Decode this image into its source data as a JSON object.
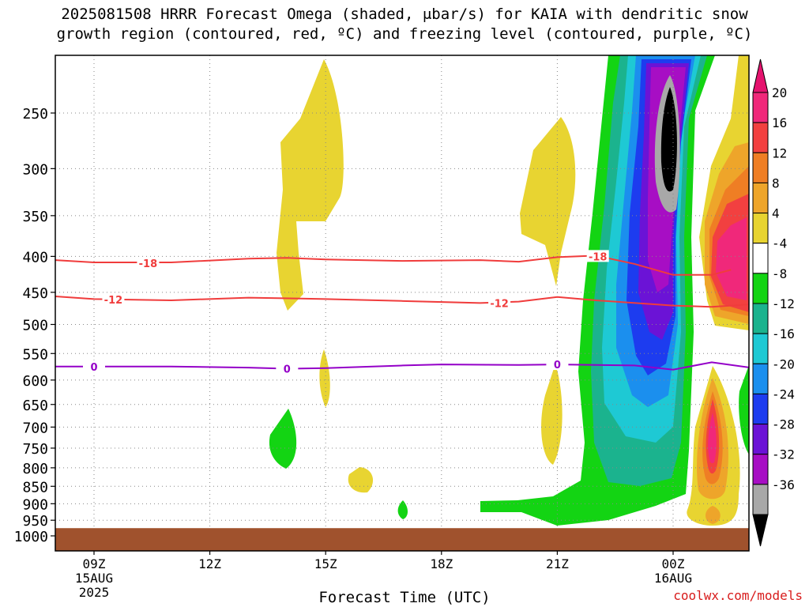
{
  "title": {
    "line1": "2025081508 HRRR Forecast Omega (shaded, μbar/s) for KAIA with dendritic snow",
    "line2": "growth region (contoured, red, ºC) and freezing level (contoured, purple, ºC)"
  },
  "credit": "coolwx.com/models",
  "chart_data": {
    "type": "heatmap",
    "title": "2025081508 HRRR Forecast Omega (shaded, μbar/s) for KAIA with dendritic snow growth region (contoured, red, ºC) and freezing level (contoured, purple, ºC)",
    "xlabel": "Forecast Time (UTC)",
    "ylabel": "",
    "x_hours": [
      8,
      26
    ],
    "x_ticks": [
      {
        "hour": 9,
        "label": "09Z",
        "sub1": "15AUG",
        "sub2": "2025"
      },
      {
        "hour": 12,
        "label": "12Z",
        "sub1": "",
        "sub2": ""
      },
      {
        "hour": 15,
        "label": "15Z",
        "sub1": "",
        "sub2": ""
      },
      {
        "hour": 18,
        "label": "18Z",
        "sub1": "",
        "sub2": ""
      },
      {
        "hour": 21,
        "label": "21Z",
        "sub1": "",
        "sub2": ""
      },
      {
        "hour": 24,
        "label": "00Z",
        "sub1": "16AUG",
        "sub2": ""
      }
    ],
    "y_pressure_hpa": [
      1000,
      950,
      900,
      850,
      800,
      750,
      700,
      650,
      600,
      550,
      500,
      450,
      400,
      350,
      300,
      250
    ],
    "y_scale": "log (pressure)",
    "grid": true,
    "colorbar": {
      "labels": [
        "20",
        "16",
        "12",
        "8",
        "4",
        "-4",
        "-8",
        "-12",
        "-16",
        "-20",
        "-24",
        "-28",
        "-32",
        "-36"
      ],
      "colors": [
        "#f0287a",
        "#f24040",
        "#ef7e24",
        "#eea52a",
        "#e8d431",
        "#ffffff",
        "#13d413",
        "#1bb38e",
        "#1ec9d4",
        "#1b8fee",
        "#1d3cef",
        "#6b13d6",
        "#a70ec4",
        "#a8a8a8",
        "#000000"
      ],
      "top_arrow_color": "#e5136e",
      "bottom_arrow_color": "#000000"
    },
    "contours": [
      {
        "level": -18,
        "color": "#f03c3c",
        "label": "-18",
        "points": [
          [
            8,
            405
          ],
          [
            9,
            408
          ],
          [
            11,
            408
          ],
          [
            13,
            403
          ],
          [
            14,
            402
          ],
          [
            15,
            404
          ],
          [
            17,
            406
          ],
          [
            19,
            405
          ],
          [
            20,
            407
          ],
          [
            21,
            401
          ],
          [
            22,
            399
          ],
          [
            23,
            410
          ],
          [
            24,
            425
          ],
          [
            25,
            425
          ],
          [
            25.5,
            418
          ]
        ],
        "label_positions": [
          [
            10.4,
            409
          ],
          [
            22.05,
            400
          ]
        ]
      },
      {
        "level": -12,
        "color": "#f03c3c",
        "label": "-12",
        "points": [
          [
            8,
            456
          ],
          [
            9,
            460
          ],
          [
            11,
            462
          ],
          [
            13,
            458
          ],
          [
            15,
            460
          ],
          [
            17,
            463
          ],
          [
            19,
            466
          ],
          [
            20,
            464
          ],
          [
            21,
            457
          ],
          [
            22,
            462
          ],
          [
            24,
            470
          ],
          [
            25,
            472
          ],
          [
            26,
            468
          ]
        ],
        "label_positions": [
          [
            9.5,
            461
          ],
          [
            19.5,
            466
          ]
        ]
      },
      {
        "level": 0,
        "color": "#9400c8",
        "label": "0",
        "points": [
          [
            8,
            574
          ],
          [
            9,
            574
          ],
          [
            11,
            574
          ],
          [
            13,
            576
          ],
          [
            14,
            578
          ],
          [
            15,
            577
          ],
          [
            17,
            572
          ],
          [
            18,
            570
          ],
          [
            20,
            571
          ],
          [
            21,
            570
          ],
          [
            23,
            572
          ],
          [
            24,
            580
          ],
          [
            25,
            566
          ],
          [
            26,
            576
          ]
        ],
        "label_positions": [
          [
            9,
            574
          ],
          [
            14,
            578
          ],
          [
            21,
            570
          ]
        ]
      }
    ],
    "terrain": {
      "color": "#a0522d",
      "top_hpa": 975,
      "description": "ground below surface"
    }
  }
}
